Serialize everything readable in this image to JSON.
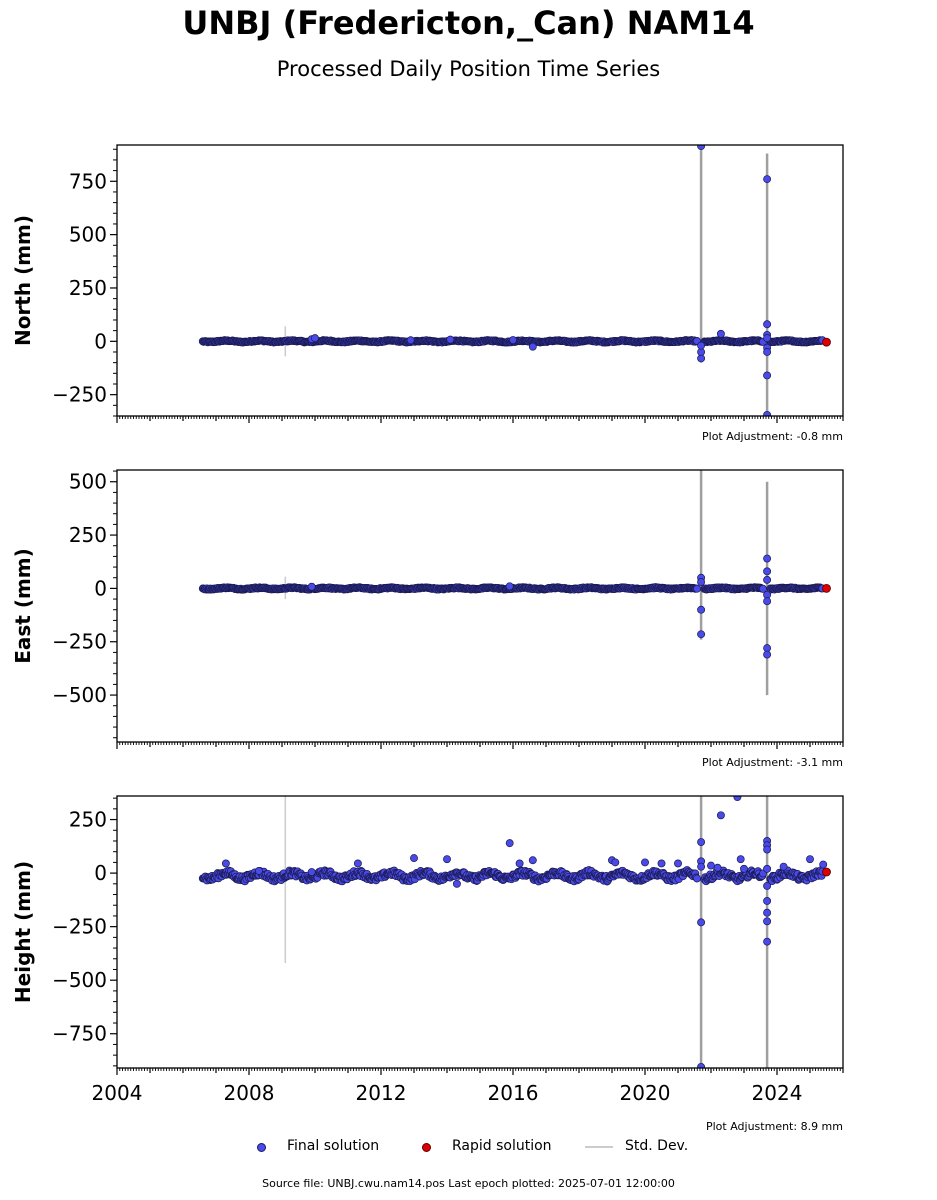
{
  "title": "UNBJ (Fredericton,_Can) NAM14",
  "subtitle": "Processed Daily Position Time Series",
  "footer": "Source file: UNBJ.cwu.nam14.pos  Last epoch plotted: 2025-07-01 12:00:00",
  "legend": {
    "final": "Final solution",
    "rapid": "Rapid solution",
    "std": "Std. Dev."
  },
  "colors": {
    "final": "#4a4ae8",
    "rapid": "#e00000",
    "std": "#aaaaaa"
  },
  "chart_data": [
    {
      "type": "scatter",
      "ylabel": "North (mm)",
      "adjustment": "Plot Adjustment: -0.8 mm",
      "xlim": [
        2004,
        2026
      ],
      "ylim": [
        -350,
        920
      ],
      "yticks": [
        -250,
        0,
        250,
        500,
        750
      ],
      "ytick_labels": [
        "−250",
        "0",
        "250",
        "500",
        "750"
      ],
      "xticks": [
        2004,
        2008,
        2012,
        2016,
        2020,
        2024
      ],
      "show_xtick_labels": false,
      "base_range": [
        -5,
        5
      ],
      "final_points": [
        [
          2009.9,
          10
        ],
        [
          2010.0,
          15
        ],
        [
          2012.9,
          5
        ],
        [
          2014.1,
          8
        ],
        [
          2016.0,
          6
        ],
        [
          2016.6,
          -25
        ],
        [
          2021.7,
          -80
        ],
        [
          2021.7,
          -50
        ],
        [
          2021.7,
          -20
        ],
        [
          2021.7,
          915
        ],
        [
          2022.3,
          35
        ],
        [
          2023.7,
          760
        ],
        [
          2023.7,
          80
        ],
        [
          2023.7,
          30
        ],
        [
          2023.7,
          15
        ],
        [
          2023.7,
          -30
        ],
        [
          2023.7,
          -50
        ],
        [
          2023.7,
          -160
        ],
        [
          2023.7,
          -345
        ]
      ],
      "rapid_points": [
        [
          2025.5,
          -4
        ]
      ],
      "std_lines": [
        [
          2009.1,
          -70,
          70
        ],
        [
          2021.7,
          -100,
          920
        ],
        [
          2023.7,
          -350,
          880
        ]
      ],
      "dense": [
        [
          2006.6,
          2021.6
        ],
        [
          2021.8,
          2023.6
        ],
        [
          2023.8,
          2025.4
        ]
      ]
    },
    {
      "type": "scatter",
      "ylabel": "East (mm)",
      "adjustment": "Plot Adjustment: -3.1 mm",
      "xlim": [
        2004,
        2026
      ],
      "ylim": [
        -720,
        555
      ],
      "yticks": [
        -500,
        -250,
        0,
        250,
        500
      ],
      "ytick_labels": [
        "−500",
        "−250",
        "0",
        "250",
        "500"
      ],
      "xticks": [
        2004,
        2008,
        2012,
        2016,
        2020,
        2024
      ],
      "show_xtick_labels": false,
      "base_range": [
        -5,
        5
      ],
      "final_points": [
        [
          2009.9,
          8
        ],
        [
          2015.9,
          10
        ],
        [
          2021.7,
          50
        ],
        [
          2021.7,
          30
        ],
        [
          2021.7,
          -100
        ],
        [
          2021.7,
          -215
        ],
        [
          2023.7,
          140
        ],
        [
          2023.7,
          80
        ],
        [
          2023.7,
          40
        ],
        [
          2023.7,
          -30
        ],
        [
          2023.7,
          -60
        ],
        [
          2023.7,
          -280
        ],
        [
          2023.7,
          -310
        ]
      ],
      "rapid_points": [
        [
          2025.5,
          0
        ]
      ],
      "std_lines": [
        [
          2009.1,
          -50,
          55
        ],
        [
          2021.7,
          -240,
          555
        ],
        [
          2023.7,
          -500,
          500
        ]
      ],
      "dense": [
        [
          2006.6,
          2021.6
        ],
        [
          2021.8,
          2023.6
        ],
        [
          2023.8,
          2025.4
        ]
      ]
    },
    {
      "type": "scatter",
      "ylabel": "Height (mm)",
      "adjustment": "Plot Adjustment: 8.9 mm",
      "xlim": [
        2004,
        2026
      ],
      "ylim": [
        -910,
        360
      ],
      "yticks": [
        -750,
        -500,
        -250,
        0,
        250
      ],
      "ytick_labels": [
        "−750",
        "−500",
        "−250",
        "0",
        "250"
      ],
      "xticks": [
        2004,
        2008,
        2012,
        2016,
        2020,
        2024
      ],
      "xtick_labels": [
        "2004",
        "2008",
        "2012",
        "2016",
        "2020",
        "2024"
      ],
      "show_xtick_labels": true,
      "base_range": [
        -35,
        10
      ],
      "final_points": [
        [
          2007.3,
          45
        ],
        [
          2008.3,
          10
        ],
        [
          2009.9,
          5
        ],
        [
          2011.3,
          45
        ],
        [
          2013.0,
          70
        ],
        [
          2014.0,
          65
        ],
        [
          2014.3,
          -50
        ],
        [
          2015.9,
          140
        ],
        [
          2016.2,
          45
        ],
        [
          2016.6,
          60
        ],
        [
          2019.0,
          60
        ],
        [
          2019.1,
          50
        ],
        [
          2020.0,
          50
        ],
        [
          2020.5,
          45
        ],
        [
          2021.0,
          45
        ],
        [
          2021.7,
          145
        ],
        [
          2021.7,
          55
        ],
        [
          2021.7,
          30
        ],
        [
          2021.7,
          -230
        ],
        [
          2021.7,
          -905
        ],
        [
          2022.0,
          35
        ],
        [
          2022.2,
          25
        ],
        [
          2022.3,
          270
        ],
        [
          2022.8,
          355
        ],
        [
          2022.9,
          65
        ],
        [
          2023.0,
          20
        ],
        [
          2023.7,
          150
        ],
        [
          2023.7,
          130
        ],
        [
          2023.7,
          110
        ],
        [
          2023.7,
          20
        ],
        [
          2023.7,
          -60
        ],
        [
          2023.7,
          -130
        ],
        [
          2023.7,
          -185
        ],
        [
          2023.7,
          -225
        ],
        [
          2023.7,
          -320
        ],
        [
          2024.2,
          30
        ],
        [
          2025.0,
          65
        ],
        [
          2025.4,
          40
        ]
      ],
      "rapid_points": [
        [
          2025.5,
          5
        ]
      ],
      "std_lines": [
        [
          2009.1,
          -420,
          360
        ],
        [
          2021.7,
          -910,
          360
        ],
        [
          2023.7,
          -910,
          360
        ]
      ],
      "dense": [
        [
          2006.6,
          2021.6
        ],
        [
          2021.8,
          2023.6
        ],
        [
          2023.8,
          2025.4
        ]
      ]
    }
  ]
}
